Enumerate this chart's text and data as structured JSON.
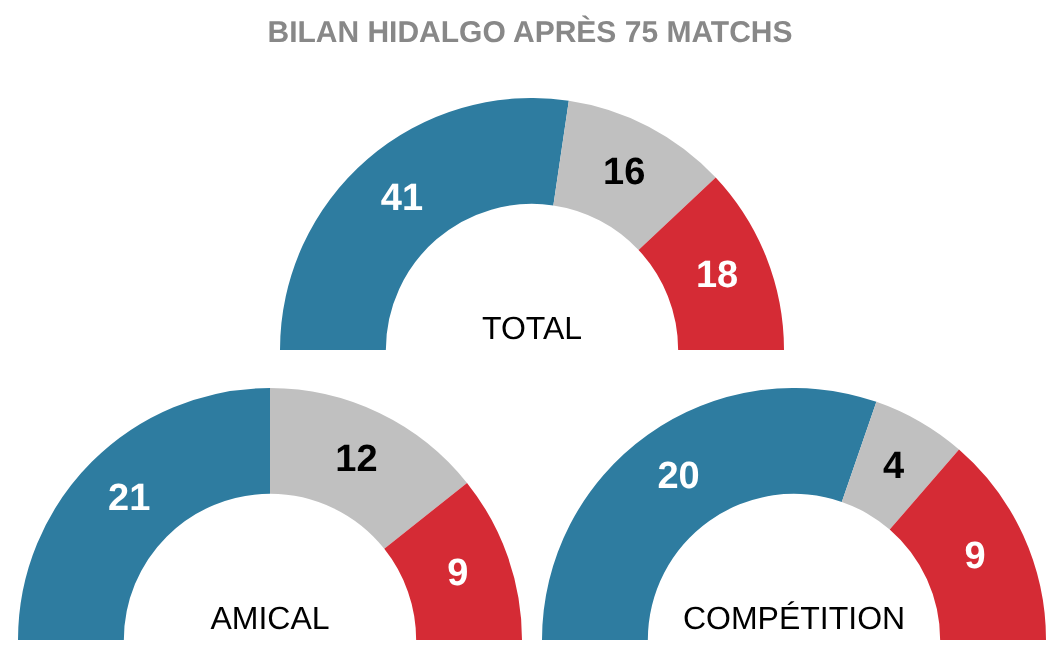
{
  "chart_data": [
    {
      "type": "donut",
      "title": "BILAN HIDALGO APRÈS 75 MATCHS",
      "categories": [
        null,
        null,
        null
      ],
      "values": [
        41,
        16,
        18
      ],
      "colors": [
        "#2e7ca0",
        "#c0c0c0",
        "#d52b35"
      ],
      "data_labels": true,
      "annotations": [
        "TOTAL"
      ]
    },
    {
      "type": "donut",
      "categories": [
        null,
        null,
        null
      ],
      "values": [
        21,
        12,
        9
      ],
      "colors": [
        "#2e7ca0",
        "#c0c0c0",
        "#d52b35"
      ],
      "data_labels": true,
      "annotations": [
        "AMICAL"
      ]
    },
    {
      "type": "donut",
      "categories": [
        null,
        null,
        null
      ],
      "values": [
        20,
        4,
        9
      ],
      "colors": [
        "#2e7ca0",
        "#c0c0c0",
        "#d52b35"
      ],
      "data_labels": true,
      "annotations": [
        "COMPÉTITION"
      ]
    }
  ]
}
